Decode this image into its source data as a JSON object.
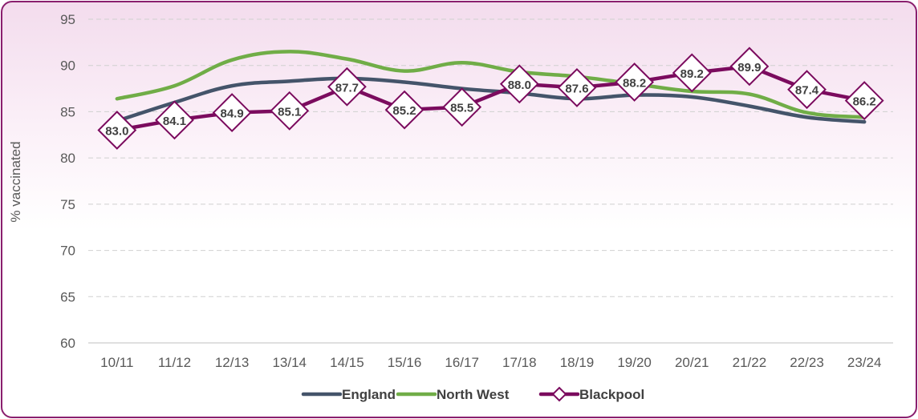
{
  "chart_data": {
    "type": "line",
    "title": "",
    "xlabel": "",
    "ylabel": "% vaccinated",
    "ylim": [
      60,
      95
    ],
    "yticks": [
      60,
      65,
      70,
      75,
      80,
      85,
      90,
      95
    ],
    "grid": true,
    "legend_position": "bottom",
    "categories": [
      "10/11",
      "11/12",
      "12/13",
      "13/14",
      "14/15",
      "15/16",
      "16/17",
      "17/18",
      "18/19",
      "19/20",
      "20/21",
      "21/22",
      "22/23",
      "23/24"
    ],
    "series": [
      {
        "name": "England",
        "color": "#44546a",
        "smooth": true,
        "markers": false,
        "labels": false,
        "values": [
          84.0,
          86.0,
          87.8,
          88.3,
          88.6,
          88.2,
          87.5,
          87.0,
          86.4,
          86.8,
          86.6,
          85.6,
          84.4,
          83.9
        ]
      },
      {
        "name": "North West",
        "color": "#70ad47",
        "smooth": true,
        "markers": false,
        "labels": false,
        "values": [
          86.4,
          87.8,
          90.6,
          91.5,
          90.7,
          89.4,
          90.3,
          89.3,
          88.8,
          88.0,
          87.2,
          86.9,
          84.9,
          84.4
        ]
      },
      {
        "name": "Blackpool",
        "color": "#7b0b5e",
        "smooth": false,
        "markers": true,
        "labels": true,
        "values": [
          83.0,
          84.1,
          84.9,
          85.1,
          87.7,
          85.2,
          85.5,
          88.0,
          87.6,
          88.2,
          89.2,
          89.9,
          87.4,
          86.2
        ]
      }
    ]
  }
}
